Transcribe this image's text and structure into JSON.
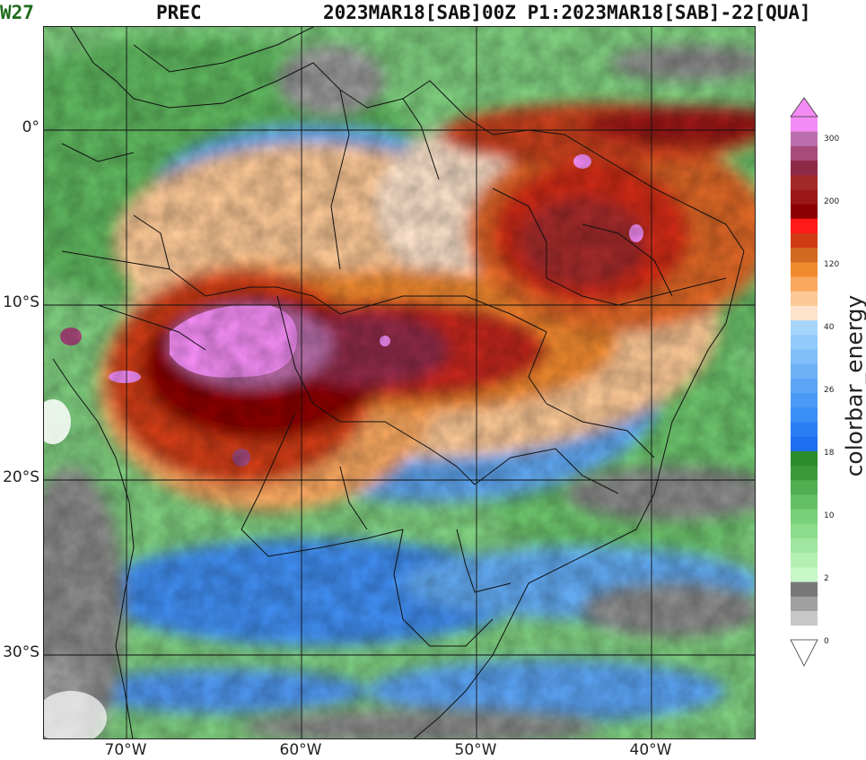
{
  "header": {
    "model": "W27",
    "variable": "PREC",
    "dates": "2023MAR18[SAB]00Z P1:2023MAR18[SAB]-22[QUA]"
  },
  "axes": {
    "lat_labels": [
      "0°",
      "10°S",
      "20°S",
      "30°S"
    ],
    "lon_labels": [
      "70°W",
      "60°W",
      "50°W",
      "40°W"
    ]
  },
  "colorbar": {
    "label": "colorbar_energy",
    "ticks": [
      "300",
      "200",
      "120",
      "40",
      "26",
      "18",
      "10",
      "2",
      "0"
    ],
    "colors": [
      "#ffffff",
      "#c8c8c8",
      "#a0a0a0",
      "#787878",
      "#c8f7c8",
      "#b4efb4",
      "#a0e6a0",
      "#8cdc8c",
      "#78d078",
      "#64c064",
      "#4fae4f",
      "#3a9a3a",
      "#2a8c2a",
      "#1e6ef0",
      "#2a7ef5",
      "#3a8ef5",
      "#4a9af5",
      "#5ca6f5",
      "#6eb2f5",
      "#80befa",
      "#92cafa",
      "#a6d6fc",
      "#fde3cc",
      "#fcc896",
      "#f9a860",
      "#f08a2e",
      "#d2691e",
      "#d23c14",
      "#ff1a1a",
      "#8b0000",
      "#9b1818",
      "#a32a2a",
      "#8e2a48",
      "#a84a7a",
      "#bb70ad",
      "#f58cf5"
    ],
    "tip_top": "#f58cf5",
    "tip_bottom": "#ffffff"
  }
}
